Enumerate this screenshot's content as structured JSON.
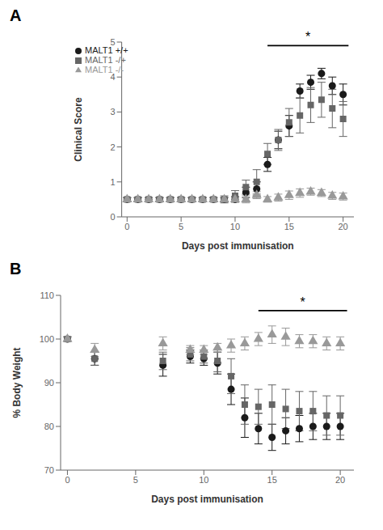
{
  "chart_data": [
    {
      "type": "scatter",
      "title": "A",
      "xlabel": "Days post immunisation",
      "ylabel": "Clinical Score",
      "xlim": [
        -0.5,
        21
      ],
      "xticks": [
        0,
        5,
        10,
        15,
        20
      ],
      "ylim": [
        0,
        5
      ],
      "yticks": [
        0,
        1,
        2,
        3,
        4,
        5
      ],
      "legend": "upper left",
      "annotations": [
        {
          "text": "*",
          "x": [
            13,
            20.5
          ],
          "y": 4.9
        }
      ],
      "series": [
        {
          "name": "MALT1 +/+",
          "color": "#1a1a1a",
          "marker": "circle",
          "x": [
            0,
            1,
            2,
            3,
            4,
            5,
            6,
            7,
            8,
            9,
            10,
            11,
            12,
            13,
            14,
            15,
            16,
            17,
            18,
            19,
            20
          ],
          "values": [
            0.5,
            0.5,
            0.5,
            0.5,
            0.5,
            0.5,
            0.5,
            0.5,
            0.5,
            0.5,
            0.5,
            0.7,
            0.8,
            1.5,
            2.2,
            2.6,
            3.6,
            3.85,
            4.1,
            3.75,
            3.5
          ],
          "yerr": [
            0.05,
            0.05,
            0.05,
            0.05,
            0.05,
            0.05,
            0.05,
            0.05,
            0.05,
            0.05,
            0.08,
            0.15,
            0.2,
            0.2,
            0.25,
            0.3,
            0.2,
            0.2,
            0.15,
            0.25,
            0.3
          ]
        },
        {
          "name": "MALT1 -/+",
          "color": "#666666",
          "marker": "square",
          "x": [
            0,
            1,
            2,
            3,
            4,
            5,
            6,
            7,
            8,
            9,
            10,
            11,
            12,
            13,
            14,
            15,
            16,
            17,
            18,
            19,
            20
          ],
          "values": [
            0.5,
            0.5,
            0.5,
            0.5,
            0.5,
            0.5,
            0.5,
            0.5,
            0.5,
            0.5,
            0.6,
            0.85,
            1.0,
            1.8,
            2.2,
            2.7,
            2.9,
            3.2,
            3.35,
            3.1,
            2.8
          ],
          "yerr": [
            0.05,
            0.05,
            0.05,
            0.05,
            0.05,
            0.05,
            0.05,
            0.05,
            0.05,
            0.1,
            0.15,
            0.2,
            0.35,
            0.3,
            0.3,
            0.4,
            0.5,
            0.5,
            0.5,
            0.55,
            0.5
          ]
        },
        {
          "name": "MALT1 -/-",
          "color": "#999999",
          "marker": "triangle",
          "x": [
            0,
            1,
            2,
            3,
            4,
            5,
            6,
            7,
            8,
            9,
            10,
            11,
            12,
            13,
            14,
            15,
            16,
            17,
            18,
            19,
            20
          ],
          "values": [
            0.5,
            0.5,
            0.5,
            0.5,
            0.5,
            0.5,
            0.5,
            0.5,
            0.5,
            0.5,
            0.5,
            0.5,
            0.62,
            0.5,
            0.55,
            0.62,
            0.68,
            0.72,
            0.68,
            0.6,
            0.58
          ],
          "yerr": [
            0.05,
            0.05,
            0.05,
            0.05,
            0.05,
            0.05,
            0.05,
            0.05,
            0.05,
            0.05,
            0.05,
            0.1,
            0.1,
            0.08,
            0.1,
            0.12,
            0.12,
            0.1,
            0.1,
            0.1,
            0.1
          ]
        }
      ]
    },
    {
      "type": "scatter",
      "title": "B",
      "xlabel": "Days post immunisation",
      "ylabel": "% Body Weight",
      "xlim": [
        -0.5,
        21
      ],
      "xticks": [
        0,
        5,
        10,
        15,
        20
      ],
      "ylim": [
        70,
        110
      ],
      "yticks": [
        70,
        80,
        90,
        100,
        110
      ],
      "annotations": [
        {
          "text": "*",
          "x": [
            14,
            20.5
          ],
          "y": 106.5
        }
      ],
      "series": [
        {
          "name": "MALT1 +/+",
          "color": "#1a1a1a",
          "marker": "circle",
          "x": [
            0,
            2,
            7,
            9,
            10,
            11,
            12,
            13,
            14,
            15,
            16,
            17,
            18,
            19,
            20
          ],
          "values": [
            100.0,
            95.5,
            94.0,
            96.0,
            95.5,
            94.5,
            88.5,
            82.0,
            79.5,
            77.5,
            79.0,
            79.5,
            80.0,
            80.0,
            80.0
          ],
          "yerr": [
            0.5,
            1.5,
            2.5,
            1.5,
            1.5,
            2.5,
            3.5,
            4.5,
            3.5,
            3.0,
            3.0,
            3.0,
            3.0,
            3.0,
            3.0
          ]
        },
        {
          "name": "MALT1 -/+",
          "color": "#666666",
          "marker": "square",
          "x": [
            0,
            2,
            7,
            9,
            10,
            11,
            12,
            13,
            14,
            15,
            16,
            17,
            18,
            19,
            20
          ],
          "values": [
            100.0,
            95.5,
            95.0,
            96.5,
            96.0,
            95.0,
            91.5,
            85.0,
            84.5,
            85.0,
            84.0,
            83.5,
            83.5,
            82.5,
            82.5
          ],
          "yerr": [
            0.5,
            1.5,
            2.0,
            1.5,
            1.5,
            2.5,
            4.0,
            4.5,
            4.0,
            4.5,
            4.5,
            4.5,
            4.5,
            4.5,
            4.5
          ]
        },
        {
          "name": "MALT1 -/-",
          "color": "#999999",
          "marker": "triangle",
          "x": [
            0,
            2,
            7,
            9,
            10,
            11,
            12,
            13,
            14,
            15,
            16,
            17,
            18,
            19,
            20
          ],
          "values": [
            100.0,
            97.5,
            99.0,
            97.5,
            97.5,
            98.0,
            98.5,
            99.0,
            100.0,
            101.0,
            100.5,
            99.5,
            99.5,
            99.0,
            99.0
          ],
          "yerr": [
            0.5,
            1.5,
            1.5,
            1.0,
            1.0,
            1.0,
            1.5,
            1.5,
            1.5,
            2.0,
            2.0,
            1.5,
            1.5,
            1.5,
            1.5
          ]
        }
      ]
    }
  ]
}
